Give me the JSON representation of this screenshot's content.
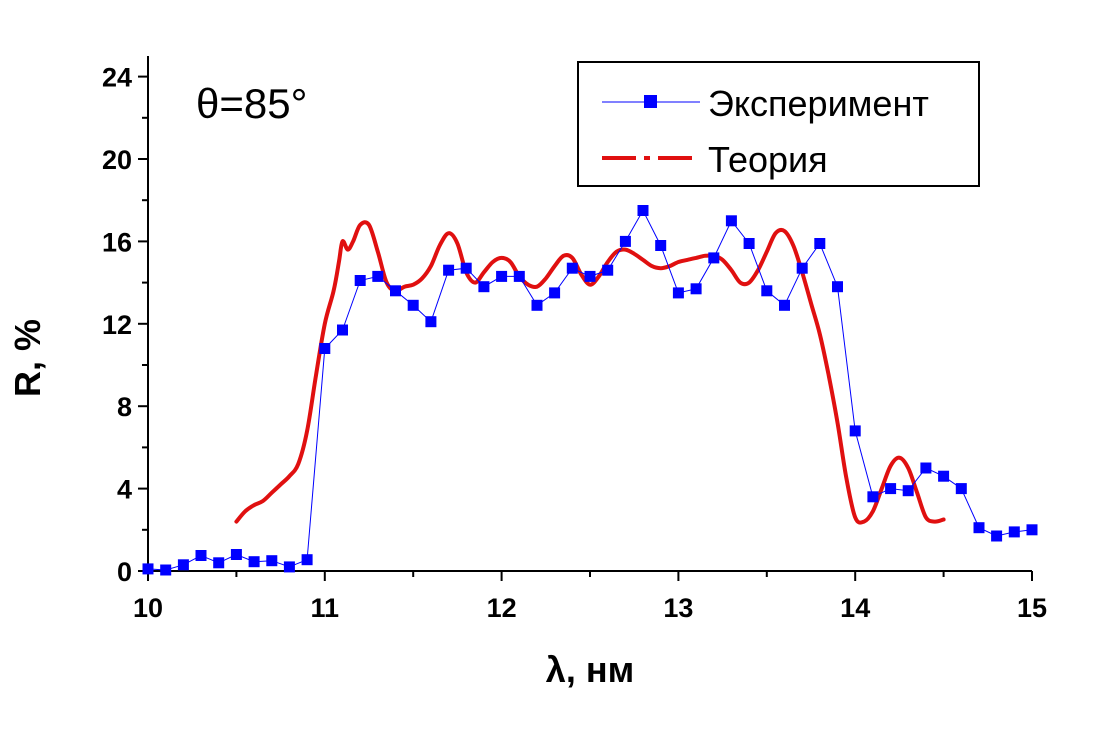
{
  "chart_data": {
    "type": "line",
    "title": "",
    "xlabel": "λ, нм",
    "ylabel": "R, %",
    "xlim": [
      10,
      15
    ],
    "ylim": [
      0,
      25
    ],
    "x_ticks": [
      10,
      11,
      12,
      13,
      14,
      15
    ],
    "y_ticks": [
      0,
      4,
      8,
      12,
      16,
      20,
      24
    ],
    "grid": false,
    "legend_position": "top-right",
    "annotation": "θ=85°",
    "colors": {
      "experiment": "#0000ff",
      "theory": "#e01010",
      "axis": "#000000"
    },
    "series": [
      {
        "name": "Эксперимент",
        "style": "line-with-square-markers",
        "x": [
          10.0,
          10.1,
          10.2,
          10.3,
          10.4,
          10.5,
          10.6,
          10.7,
          10.8,
          10.9,
          11.0,
          11.1,
          11.2,
          11.3,
          11.4,
          11.5,
          11.6,
          11.7,
          11.8,
          11.9,
          12.0,
          12.1,
          12.2,
          12.3,
          12.4,
          12.5,
          12.6,
          12.7,
          12.8,
          12.9,
          13.0,
          13.1,
          13.2,
          13.3,
          13.4,
          13.5,
          13.6,
          13.7,
          13.8,
          13.9,
          14.0,
          14.1,
          14.2,
          14.3,
          14.4,
          14.5,
          14.6,
          14.7,
          14.8,
          14.9,
          15.0
        ],
        "y": [
          0.1,
          0.05,
          0.3,
          0.75,
          0.4,
          0.8,
          0.45,
          0.5,
          0.2,
          0.55,
          10.8,
          11.7,
          14.1,
          14.3,
          13.6,
          12.9,
          12.1,
          14.6,
          14.7,
          13.8,
          14.3,
          14.3,
          12.9,
          13.5,
          14.7,
          14.3,
          14.6,
          16.0,
          17.5,
          15.8,
          13.5,
          13.7,
          15.2,
          17.0,
          15.9,
          13.6,
          12.9,
          14.7,
          15.9,
          13.8,
          6.8,
          3.6,
          4.0,
          3.9,
          5.0,
          4.6,
          4.0,
          2.1,
          1.7,
          1.9,
          2.0
        ]
      },
      {
        "name": "Теория",
        "style": "dash-dot-line",
        "x": [
          10.5,
          10.55,
          10.6,
          10.65,
          10.7,
          10.75,
          10.8,
          10.85,
          10.9,
          10.95,
          11.0,
          11.05,
          11.08,
          11.1,
          11.13,
          11.16,
          11.2,
          11.25,
          11.3,
          11.35,
          11.4,
          11.45,
          11.5,
          11.55,
          11.6,
          11.65,
          11.7,
          11.75,
          11.8,
          11.85,
          11.9,
          11.95,
          12.0,
          12.05,
          12.1,
          12.15,
          12.2,
          12.25,
          12.3,
          12.35,
          12.4,
          12.45,
          12.5,
          12.55,
          12.6,
          12.65,
          12.7,
          12.75,
          12.8,
          12.85,
          12.9,
          12.95,
          13.0,
          13.05,
          13.1,
          13.15,
          13.2,
          13.25,
          13.3,
          13.35,
          13.4,
          13.45,
          13.5,
          13.55,
          13.6,
          13.65,
          13.7,
          13.75,
          13.8,
          13.85,
          13.9,
          13.95,
          14.0,
          14.05,
          14.1,
          14.15,
          14.2,
          14.25,
          14.3,
          14.35,
          14.4,
          14.45,
          14.5
        ],
        "y": [
          2.4,
          2.9,
          3.2,
          3.4,
          3.8,
          4.2,
          4.6,
          5.2,
          6.8,
          9.5,
          12.0,
          13.6,
          15.0,
          16.0,
          15.6,
          16.0,
          16.8,
          16.8,
          15.5,
          14.0,
          13.6,
          13.8,
          13.9,
          14.2,
          14.8,
          15.8,
          16.4,
          15.9,
          14.5,
          14.0,
          14.5,
          15.0,
          15.2,
          15.0,
          14.3,
          13.9,
          13.8,
          14.2,
          14.8,
          15.3,
          15.2,
          14.4,
          13.9,
          14.3,
          15.0,
          15.5,
          15.6,
          15.4,
          15.1,
          14.8,
          14.7,
          14.8,
          15.0,
          15.1,
          15.2,
          15.3,
          15.3,
          15.1,
          14.6,
          14.0,
          14.0,
          14.6,
          15.5,
          16.4,
          16.5,
          15.8,
          14.5,
          13.0,
          11.5,
          9.5,
          7.2,
          4.5,
          2.6,
          2.4,
          2.9,
          4.0,
          5.1,
          5.5,
          5.0,
          3.8,
          2.6,
          2.4,
          2.5
        ]
      }
    ]
  }
}
